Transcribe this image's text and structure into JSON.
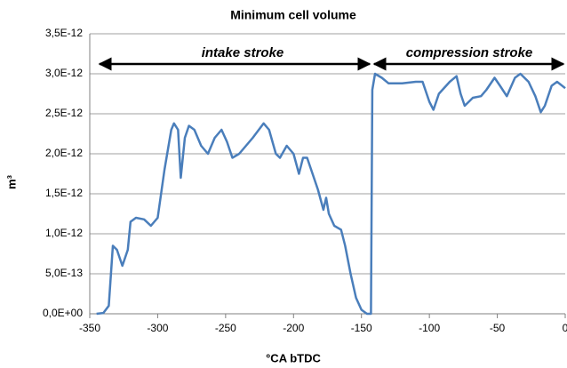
{
  "chart_data": {
    "type": "line",
    "title": "Minimum cell volume",
    "x_label": "°CA bTDC",
    "y_label": "m³",
    "annotations": [
      "intake stroke",
      "compression stroke"
    ],
    "x": [
      -345,
      -340,
      -336,
      -333,
      -330,
      -326,
      -322,
      -320,
      -316,
      -310,
      -305,
      -300,
      -295,
      -290,
      -288,
      -285,
      -283,
      -280,
      -277,
      -273,
      -268,
      -263,
      -258,
      -253,
      -249,
      -245,
      -240,
      -230,
      -222,
      -218,
      -213,
      -210,
      -205,
      -200,
      -196,
      -193,
      -190,
      -186,
      -182,
      -178,
      -176,
      -174,
      -170,
      -165,
      -162,
      -158,
      -154,
      -150,
      -146,
      -143,
      -142,
      -140,
      -135,
      -130,
      -120,
      -110,
      -105,
      -100,
      -97,
      -93,
      -85,
      -80,
      -77,
      -74,
      -68,
      -62,
      -58,
      -52,
      -48,
      -43,
      -37,
      -33,
      -27,
      -22,
      -18,
      -15,
      -10,
      -6,
      0
    ],
    "values": [
      0,
      1e-14,
      1e-13,
      8.5e-13,
      8e-13,
      6e-13,
      8e-13,
      1.15e-12,
      1.2e-12,
      1.18e-12,
      1.1e-12,
      1.2e-12,
      1.8e-12,
      2.3e-12,
      2.38e-12,
      2.3e-12,
      1.7e-12,
      2.2e-12,
      2.35e-12,
      2.3e-12,
      2.1e-12,
      2e-12,
      2.2e-12,
      2.3e-12,
      2.15e-12,
      1.95e-12,
      2e-12,
      2.2e-12,
      2.38e-12,
      2.3e-12,
      2e-12,
      1.95e-12,
      2.1e-12,
      2e-12,
      1.75e-12,
      1.95e-12,
      1.95e-12,
      1.75e-12,
      1.55e-12,
      1.3e-12,
      1.45e-12,
      1.25e-12,
      1.1e-12,
      1.05e-12,
      8.5e-13,
      5e-13,
      2e-13,
      5e-14,
      0,
      0,
      2.8e-12,
      3e-12,
      2.95e-12,
      2.88e-12,
      2.88e-12,
      2.9e-12,
      2.9e-12,
      2.65e-12,
      2.55e-12,
      2.75e-12,
      2.9e-12,
      2.97e-12,
      2.75e-12,
      2.6e-12,
      2.7e-12,
      2.72e-12,
      2.8e-12,
      2.95e-12,
      2.85e-12,
      2.72e-12,
      2.95e-12,
      3e-12,
      2.9e-12,
      2.72e-12,
      2.52e-12,
      2.6e-12,
      2.85e-12,
      2.9e-12,
      2.82e-12
    ],
    "color": "#4a7ebb",
    "xlim": [
      -350,
      0
    ],
    "xticks": [
      -350,
      -300,
      -250,
      -200,
      -150,
      -100,
      -50,
      0
    ],
    "ylim": [
      0,
      3.5e-12
    ],
    "yticks": [
      {
        "value": 0,
        "label": "0,0E+00"
      },
      {
        "value": 5e-13,
        "label": "5,0E-13"
      },
      {
        "value": 1e-12,
        "label": "1,0E-12"
      },
      {
        "value": 1.5e-12,
        "label": "1,5E-12"
      },
      {
        "value": 2e-12,
        "label": "2,0E-12"
      },
      {
        "value": 2.5e-12,
        "label": "2,5E-12"
      },
      {
        "value": 3e-12,
        "label": "3,0E-12"
      },
      {
        "value": 3.5e-12,
        "label": "3,5E-12"
      }
    ],
    "grid": true
  }
}
